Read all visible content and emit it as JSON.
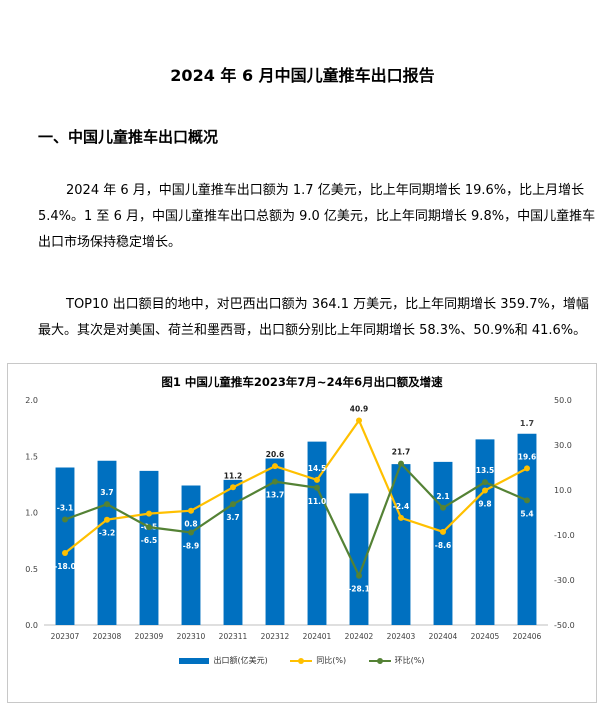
{
  "document": {
    "title": "2024 年 6 月中国儿童推车出口报告",
    "section_heading": "一、中国儿童推车出口概况",
    "paragraph1_lines": [
      "2024 年 6 月，中国儿童推车出口额为 1.7 亿美元，比上年同期增长 19.6%，比上月增长",
      "5.4%。1 至 6 月，中国儿童推车出口总额为 9.0 亿美元，比上年同期增长 9.8%，中国儿童推车",
      "出口市场保持稳定增长。"
    ],
    "paragraph2_lines": [
      "TOP10 出口额目的地中，对巴西出口额为 364.1 万美元，比上年同期增长 359.7%，增幅",
      "最大。其次是对美国、荷兰和墨西哥，出口额分别比上年同期增长 58.3%、50.9%和 41.6%。"
    ]
  },
  "chart_data": {
    "type": "bar",
    "title": "图1  中国儿童推车2023年7月~24年6月出口额及增速",
    "categories": [
      "202307",
      "202308",
      "202309",
      "202310",
      "202311",
      "202312",
      "202401",
      "202402",
      "202403",
      "202404",
      "202405",
      "202406"
    ],
    "series": [
      {
        "name": "出口额(亿美元)",
        "type": "bar",
        "axis": "left",
        "values": [
          1.4,
          1.46,
          1.37,
          1.24,
          1.29,
          1.48,
          1.63,
          1.17,
          1.43,
          1.45,
          1.65,
          1.7
        ],
        "labels": [
          "",
          "",
          "",
          "",
          "",
          "",
          "",
          "",
          "",
          "",
          "",
          "1.7"
        ]
      },
      {
        "name": "同比(%)",
        "type": "line",
        "axis": "right",
        "values": [
          -18.0,
          -3.2,
          -0.5,
          0.8,
          11.2,
          20.6,
          14.5,
          40.9,
          -2.4,
          -8.6,
          9.8,
          19.6
        ],
        "labels": [
          "-18.0",
          "-3.2",
          "-0.5",
          "0.8",
          "11.2",
          "20.6",
          "14.5",
          "40.9",
          "-2.4",
          "-8.6",
          "9.8",
          "19.6"
        ]
      },
      {
        "name": "环比(%)",
        "type": "line",
        "axis": "right",
        "values": [
          -3.1,
          3.7,
          -6.5,
          -8.9,
          3.7,
          13.7,
          11.0,
          -28.1,
          21.7,
          2.1,
          13.5,
          5.4
        ],
        "labels": [
          "-3.1",
          "3.7",
          "-6.5",
          "-8.9",
          "3.7",
          "13.7",
          "11.0",
          "-28.1",
          "21.7",
          "2.1",
          "13.5",
          "5.4"
        ]
      }
    ],
    "left_axis": {
      "ylim": [
        0,
        2.0
      ],
      "ticks": [
        "0.0",
        "0.5",
        "1.0",
        "1.5",
        "2.0"
      ]
    },
    "right_axis": {
      "ylim": [
        -50,
        50
      ],
      "ticks": [
        "-50.0",
        "-30.0",
        "-10.0",
        "10.0",
        "30.0",
        "50.0"
      ]
    },
    "legend_position": "bottom",
    "grid": false,
    "colors": {
      "bar": "#0070c0",
      "yoy": "#ffc000",
      "mom": "#548235"
    }
  }
}
